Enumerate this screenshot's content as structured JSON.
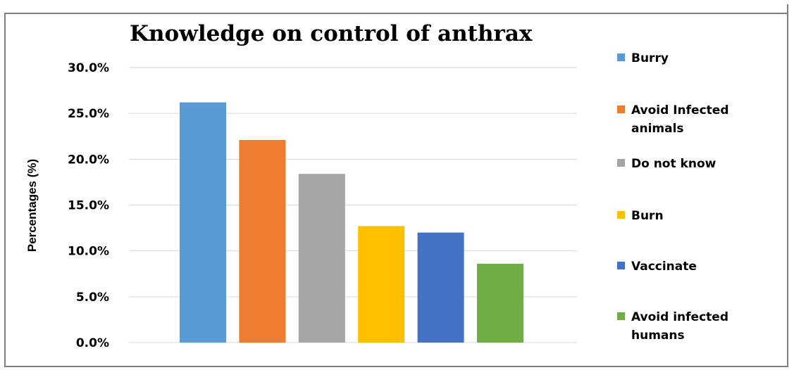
{
  "chart_data": {
    "type": "bar",
    "title": "Knowledge on control of anthrax",
    "ylabel": "Percentages (%)",
    "xlabel": "",
    "ylim": [
      0,
      30
    ],
    "yticks": [
      "0.0%",
      "5.0%",
      "10.0%",
      "15.0%",
      "20.0%",
      "25.0%",
      "30.0%"
    ],
    "grid": true,
    "legend_position": "right",
    "categories": [
      "Burry",
      "Avoid Infected animals",
      "Do not know",
      "Burn",
      "Vaccinate",
      "Avoid infected humans"
    ],
    "values": [
      26.2,
      22.1,
      18.4,
      12.7,
      12.0,
      8.6
    ],
    "colors": [
      "#5b9bd5",
      "#ed7d31",
      "#a5a5a5",
      "#ffc000",
      "#4472c4",
      "#70ad47"
    ],
    "grid_color": "#d9d9d9"
  }
}
